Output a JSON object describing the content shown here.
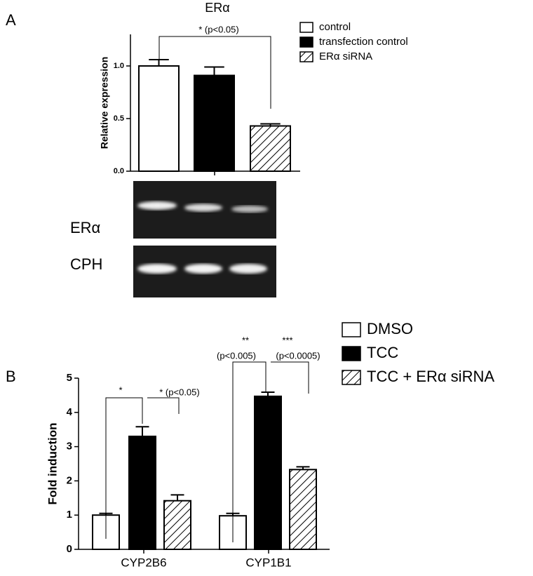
{
  "panels": {
    "a": "A",
    "b": "B"
  },
  "gel": {
    "labels": [
      "ERα",
      "CPH"
    ]
  },
  "chart_data": [
    {
      "type": "bar",
      "title": "ERα",
      "y_label": "Relative expression",
      "categories": [
        null
      ],
      "series": [
        {
          "name": "control",
          "color": "#ffffff",
          "hatch": false,
          "values": [
            1.0
          ],
          "errors": [
            0.06
          ]
        },
        {
          "name": "transfection control",
          "color": "#000000",
          "hatch": false,
          "values": [
            0.91
          ],
          "errors": [
            0.08
          ]
        },
        {
          "name": "ERα siRNA",
          "color": "#ffffff",
          "hatch": true,
          "values": [
            0.43
          ],
          "errors": [
            0.02
          ]
        }
      ],
      "ylim": [
        0,
        1.3
      ],
      "yticks": [
        {
          "value": 0,
          "label": "0.0"
        },
        {
          "value": 0.5,
          "label": "0.5"
        },
        {
          "value": 1,
          "label": "1.0"
        }
      ],
      "annotations": [
        "* (p<0.05)"
      ]
    },
    {
      "type": "bar",
      "y_label": "Fold induction",
      "categories": [
        "CYP2B6",
        "CYP1B1"
      ],
      "series": [
        {
          "name": "DMSO",
          "color": "#ffffff",
          "hatch": false,
          "values": [
            1.0,
            0.98
          ],
          "errors": [
            0.05,
            0.07
          ]
        },
        {
          "name": "TCC",
          "color": "#000000",
          "hatch": false,
          "values": [
            3.3,
            4.47
          ],
          "errors": [
            0.28,
            0.12
          ]
        },
        {
          "name": "TCC + ERα siRNA",
          "color": "#ffffff",
          "hatch": true,
          "values": [
            1.42,
            2.33
          ],
          "errors": [
            0.17,
            0.08
          ]
        }
      ],
      "ylim": [
        0,
        5
      ],
      "yticks": [
        0,
        1,
        2,
        3,
        4,
        5
      ],
      "annotations": [
        "*",
        "* (p<0.05)",
        "**",
        "(p<0.005)",
        "***",
        "(p<0.0005)"
      ]
    }
  ]
}
